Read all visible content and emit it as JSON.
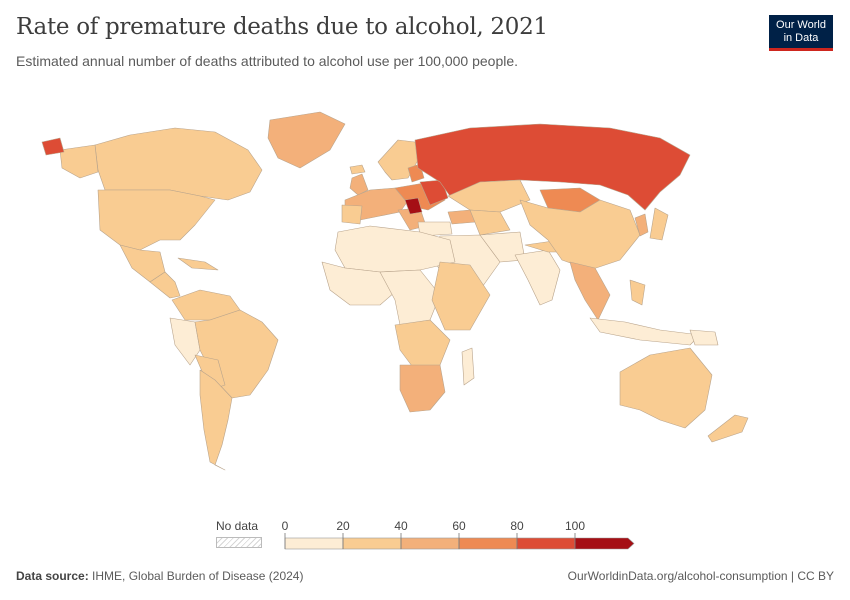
{
  "header": {
    "title": "Rate of premature deaths due to alcohol, 2021",
    "subtitle": "Estimated annual number of deaths attributed to alcohol use per 100,000 people."
  },
  "logo": {
    "line1": "Our World",
    "line2": "in Data"
  },
  "legend": {
    "no_data_label": "No data",
    "ticks": [
      "0",
      "20",
      "40",
      "60",
      "80",
      "100"
    ],
    "colors": [
      "#fdedd5",
      "#f9cc92",
      "#f3b07a",
      "#ee8a53",
      "#dd4c35",
      "#a50f15"
    ]
  },
  "footer": {
    "source_label": "Data source:",
    "source_text": " IHME, Global Burden of Disease (2024)",
    "link": "OurWorldinData.org/alcohol-consumption | CC BY"
  },
  "map_colors": {
    "lowest": "#fdedd5",
    "low": "#f9cc92",
    "mid": "#f3b07a",
    "high": "#ee8a53",
    "very_high": "#dd4c35",
    "highest": "#a50f15",
    "border": "#b9a48c"
  }
}
